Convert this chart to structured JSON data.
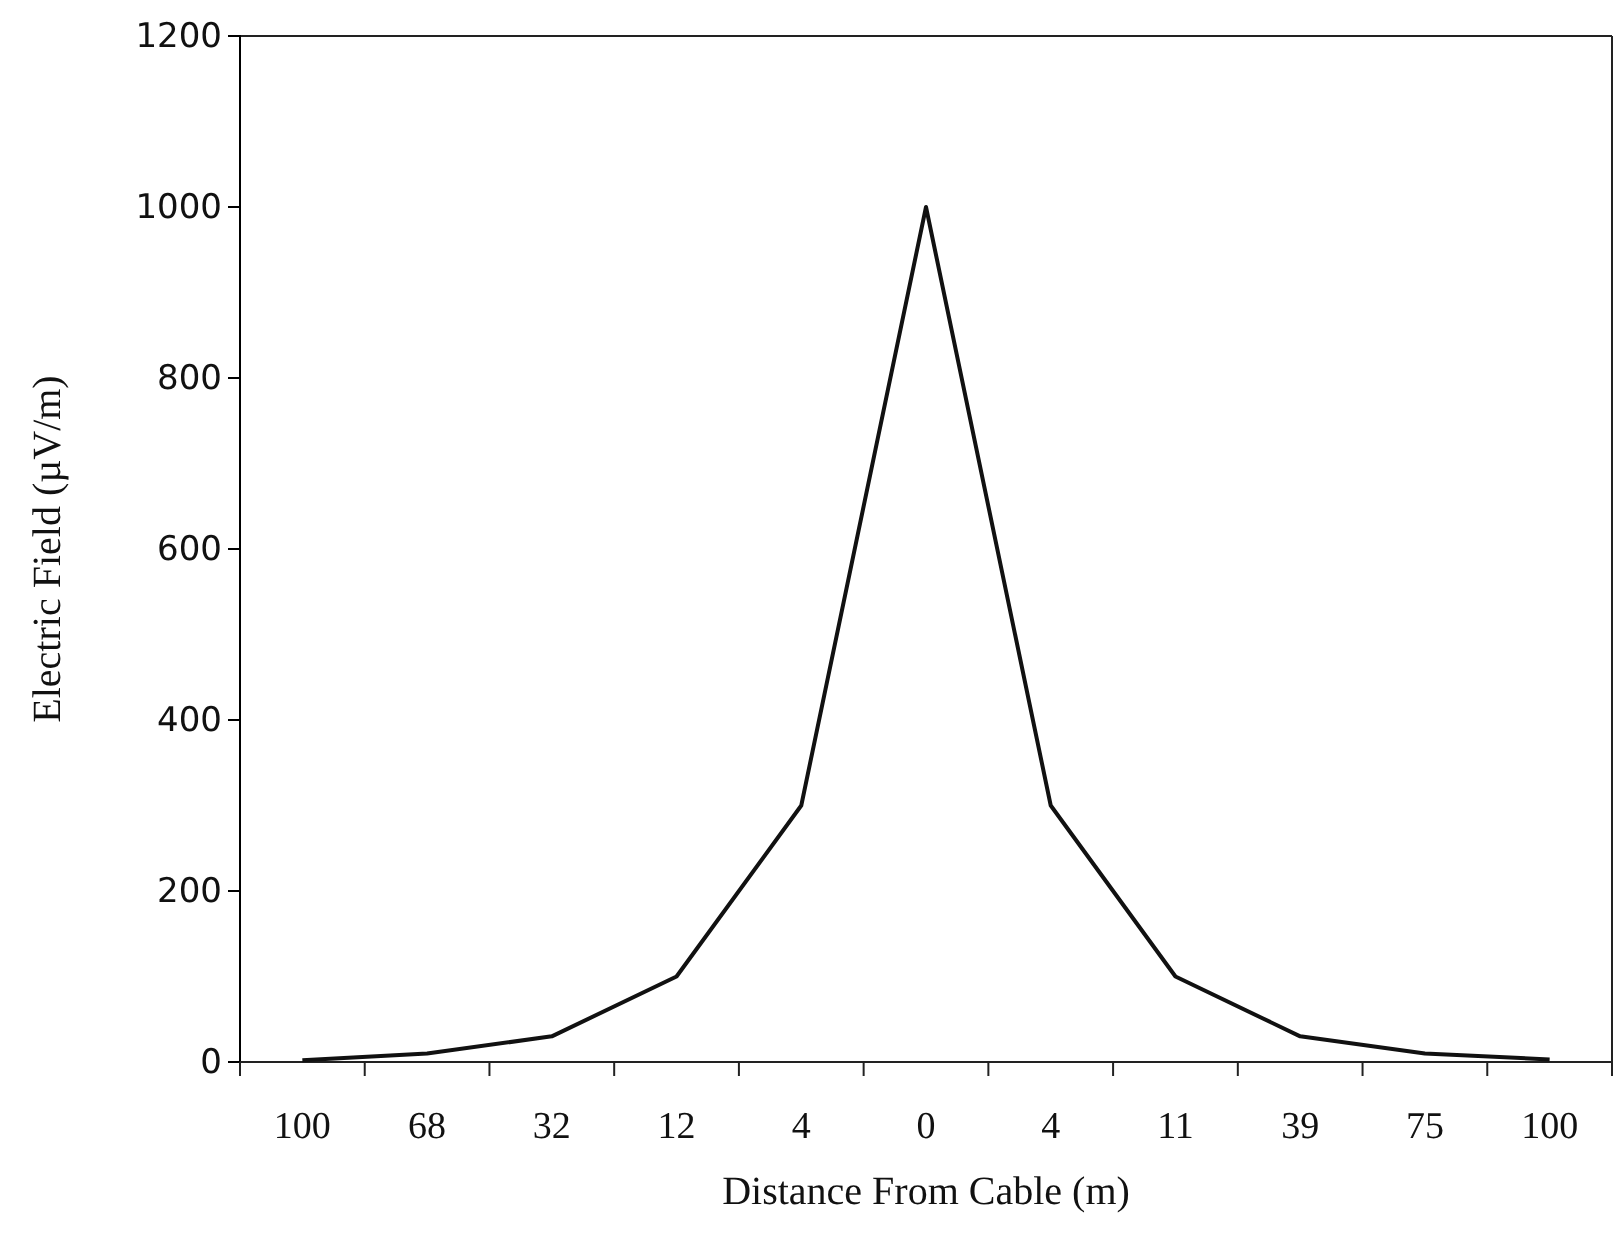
{
  "chart_data": {
    "type": "line",
    "xlabel": "Distance From Cable (m)",
    "ylabel": "Electric Field (µV/m)",
    "categories": [
      "100",
      "68",
      "32",
      "12",
      "4",
      "0",
      "4",
      "11",
      "39",
      "75",
      "100"
    ],
    "series": [
      {
        "color": "#111111",
        "values": [
          2,
          10,
          30,
          100,
          300,
          1000,
          300,
          100,
          30,
          10,
          3
        ]
      }
    ],
    "ylim": [
      0,
      1200
    ],
    "yticks": [
      0,
      200,
      400,
      600,
      800,
      1000,
      1200
    ],
    "grid": false,
    "marker": "none",
    "line_style": "solid"
  }
}
